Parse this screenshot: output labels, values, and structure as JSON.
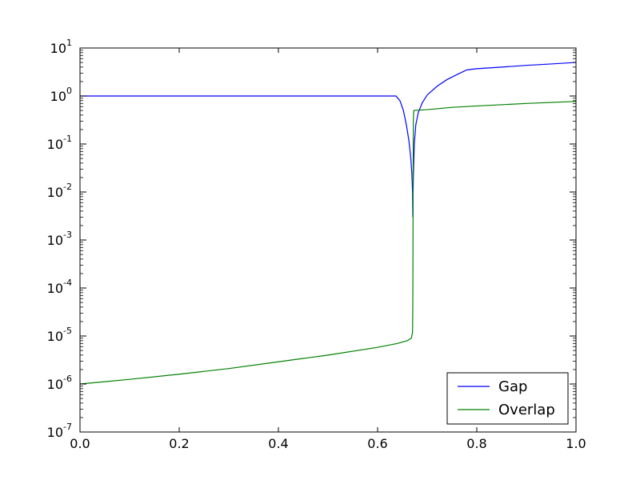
{
  "chart_data": {
    "type": "line",
    "title": "",
    "xlabel": "",
    "ylabel": "",
    "xlim": [
      0.0,
      1.0
    ],
    "ylim": [
      1e-07,
      10
    ],
    "yscale": "log",
    "grid": false,
    "legend_position": "lower-right",
    "x_ticks": [
      "0.0",
      "0.2",
      "0.4",
      "0.6",
      "0.8",
      "1.0"
    ],
    "y_ticks": [
      {
        "base": "10",
        "exp": "-7",
        "value": 1e-07
      },
      {
        "base": "10",
        "exp": "-6",
        "value": 1e-06
      },
      {
        "base": "10",
        "exp": "-5",
        "value": 1e-05
      },
      {
        "base": "10",
        "exp": "-4",
        "value": 0.0001
      },
      {
        "base": "10",
        "exp": "-3",
        "value": 0.001
      },
      {
        "base": "10",
        "exp": "-2",
        "value": 0.01
      },
      {
        "base": "10",
        "exp": "-1",
        "value": 0.1
      },
      {
        "base": "10",
        "exp": "0",
        "value": 1
      },
      {
        "base": "10",
        "exp": "1",
        "value": 10
      }
    ],
    "series": [
      {
        "name": "Gap",
        "color": "#0000ff",
        "points": [
          [
            0.0,
            1.0
          ],
          [
            0.2,
            1.0
          ],
          [
            0.4,
            1.0
          ],
          [
            0.6,
            1.0
          ],
          [
            0.637,
            1.0
          ],
          [
            0.645,
            0.8
          ],
          [
            0.652,
            0.5
          ],
          [
            0.658,
            0.25
          ],
          [
            0.663,
            0.12
          ],
          [
            0.667,
            0.05
          ],
          [
            0.669,
            0.025
          ],
          [
            0.6705,
            0.01
          ],
          [
            0.671,
            0.003
          ],
          [
            0.672,
            0.02
          ],
          [
            0.674,
            0.1
          ],
          [
            0.677,
            0.25
          ],
          [
            0.682,
            0.45
          ],
          [
            0.69,
            0.72
          ],
          [
            0.7,
            1.05
          ],
          [
            0.72,
            1.6
          ],
          [
            0.74,
            2.2
          ],
          [
            0.76,
            2.8
          ],
          [
            0.78,
            3.5
          ],
          [
            0.8,
            3.7
          ],
          [
            0.85,
            4.0
          ],
          [
            0.9,
            4.35
          ],
          [
            0.95,
            4.65
          ],
          [
            1.0,
            5.0
          ]
        ]
      },
      {
        "name": "Overlap",
        "color": "#008000",
        "points": [
          [
            0.0,
            1e-06
          ],
          [
            0.1,
            1.25e-06
          ],
          [
            0.2,
            1.6e-06
          ],
          [
            0.3,
            2.1e-06
          ],
          [
            0.4,
            2.9e-06
          ],
          [
            0.5,
            4e-06
          ],
          [
            0.6,
            5.8e-06
          ],
          [
            0.64,
            7e-06
          ],
          [
            0.66,
            8e-06
          ],
          [
            0.668,
            9e-06
          ],
          [
            0.6705,
            1.2e-05
          ],
          [
            0.671,
            5e-05
          ],
          [
            0.6715,
            0.003
          ],
          [
            0.672,
            0.3
          ],
          [
            0.673,
            0.5
          ],
          [
            0.7,
            0.52
          ],
          [
            0.75,
            0.58
          ],
          [
            0.8,
            0.62
          ],
          [
            0.9,
            0.7
          ],
          [
            1.0,
            0.77
          ]
        ]
      }
    ]
  }
}
